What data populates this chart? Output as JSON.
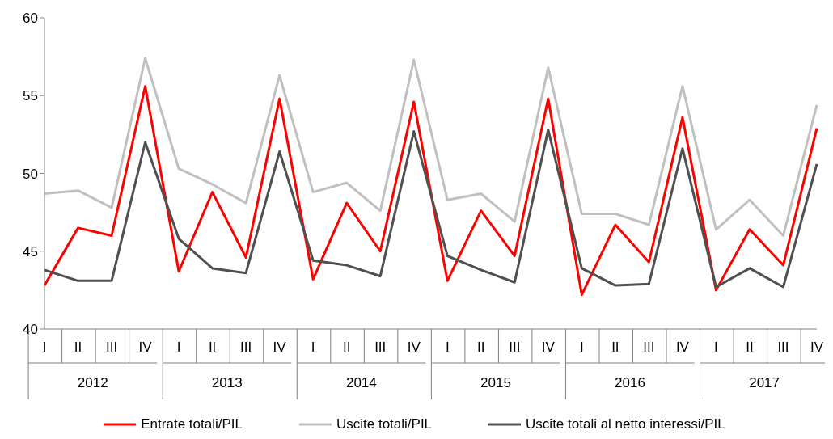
{
  "chart_data": {
    "type": "line",
    "categories": [
      "I",
      "II",
      "III",
      "IV",
      "I",
      "II",
      "III",
      "IV",
      "I",
      "II",
      "III",
      "IV",
      "I",
      "II",
      "III",
      "IV",
      "I",
      "II",
      "III",
      "IV",
      "I",
      "II",
      "III",
      "IV"
    ],
    "annotations": [
      "2012",
      "2013",
      "2014",
      "2015",
      "2016",
      "2017"
    ],
    "series": [
      {
        "name": "Entrate totali/PIL",
        "color": "#ff0000",
        "values": [
          42.8,
          46.5,
          46.0,
          55.6,
          43.7,
          48.8,
          44.6,
          54.8,
          43.2,
          48.1,
          45.0,
          54.6,
          43.1,
          47.6,
          44.7,
          54.8,
          42.2,
          46.7,
          44.3,
          53.6,
          42.5,
          46.4,
          44.1,
          52.9
        ]
      },
      {
        "name": "Uscite totali/PIL",
        "color": "#c0c0c0",
        "values": [
          48.7,
          48.9,
          47.8,
          57.4,
          50.3,
          49.3,
          48.1,
          56.3,
          48.8,
          49.4,
          47.6,
          57.3,
          48.3,
          48.7,
          46.9,
          56.8,
          47.4,
          47.4,
          46.7,
          55.6,
          46.4,
          48.3,
          46.0,
          54.4
        ]
      },
      {
        "name": "Uscite totali al netto interessi/PIL",
        "color": "#505050",
        "values": [
          43.8,
          43.1,
          43.1,
          52.0,
          45.8,
          43.9,
          43.6,
          51.4,
          44.4,
          44.1,
          43.4,
          52.7,
          44.7,
          43.8,
          43.0,
          52.8,
          43.9,
          42.8,
          42.9,
          51.6,
          42.7,
          43.9,
          42.7,
          50.6
        ]
      }
    ],
    "ylim": [
      40,
      60
    ],
    "yticks": [
      40,
      45,
      50,
      55,
      60
    ],
    "legend": "bottom",
    "marker": "none",
    "line_style": "solid"
  }
}
